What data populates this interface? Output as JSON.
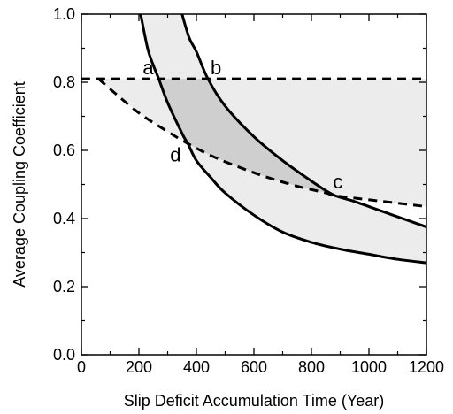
{
  "chart_data": {
    "type": "line",
    "xlabel": "Slip Deficit Accumulation Time (Year)",
    "ylabel": "Average Coupling Coefficient",
    "xlim": [
      0,
      1200
    ],
    "ylim": [
      0,
      1.0
    ],
    "x_ticks": [
      0,
      200,
      400,
      600,
      800,
      1000,
      1200
    ],
    "x_tick_labels": [
      "0",
      "200",
      "400",
      "600",
      "800",
      "1000",
      "1200"
    ],
    "y_ticks": [
      0.0,
      0.2,
      0.4,
      0.6,
      0.8,
      1.0
    ],
    "y_tick_labels": [
      "0.0",
      "0.2",
      "0.4",
      "0.6",
      "0.8",
      "1.0"
    ],
    "grid": false,
    "series": [
      {
        "style": "solid",
        "x": [
          206,
          230,
          250,
          269,
          300,
          350,
          370,
          400,
          450,
          500,
          600,
          700,
          800,
          900,
          1000,
          1100,
          1200
        ],
        "y": [
          1.0,
          0.9,
          0.85,
          0.81,
          0.74,
          0.65,
          0.62,
          0.57,
          0.52,
          0.475,
          0.41,
          0.36,
          0.33,
          0.31,
          0.295,
          0.28,
          0.27
        ]
      },
      {
        "style": "solid",
        "x": [
          350,
          375,
          400,
          440,
          500,
          600,
          700,
          800,
          875,
          950,
          1050,
          1150,
          1200
        ],
        "y": [
          1.0,
          0.93,
          0.89,
          0.81,
          0.73,
          0.64,
          0.57,
          0.51,
          0.47,
          0.45,
          0.42,
          0.39,
          0.375
        ]
      },
      {
        "style": "dashed",
        "x": [
          0,
          1200
        ],
        "y": [
          0.81,
          0.81
        ]
      },
      {
        "style": "dashed",
        "x": [
          60,
          100,
          200,
          300,
          370,
          450,
          550,
          650,
          750,
          850,
          875,
          950,
          1050,
          1150,
          1200
        ],
        "y": [
          0.81,
          0.78,
          0.71,
          0.655,
          0.62,
          0.585,
          0.55,
          0.52,
          0.495,
          0.475,
          0.468,
          0.46,
          0.45,
          0.44,
          0.435
        ]
      }
    ],
    "points": [
      {
        "label": "a",
        "x": 269,
        "y": 0.81
      },
      {
        "label": "b",
        "x": 440,
        "y": 0.81
      },
      {
        "label": "c",
        "x": 875,
        "y": 0.468
      },
      {
        "label": "d",
        "x": 370,
        "y": 0.62
      }
    ],
    "fill_colors": {
      "light": "#ececec",
      "dark": "#cfcfcf"
    }
  }
}
